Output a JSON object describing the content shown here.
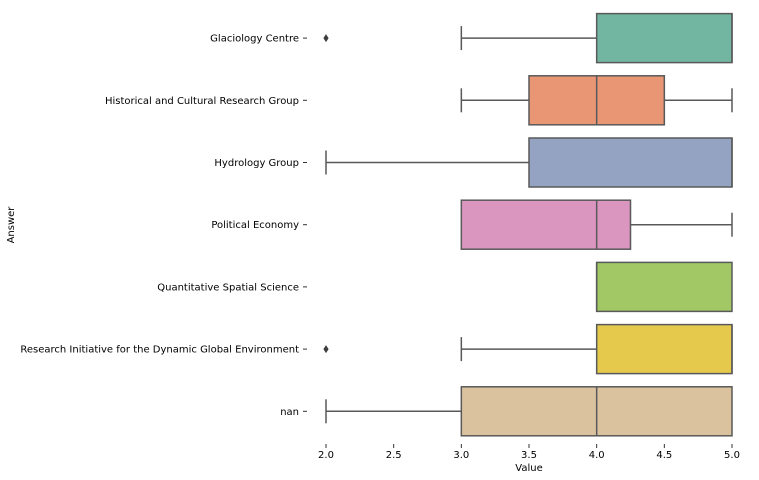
{
  "chart_data": {
    "type": "boxplot",
    "orientation": "horizontal",
    "title": "",
    "xlabel": "Value",
    "ylabel": "Answer",
    "xlim": [
      2.0,
      5.0
    ],
    "xticks": [
      2.0,
      2.5,
      3.0,
      3.5,
      4.0,
      4.5,
      5.0
    ],
    "xtick_labels": [
      "2.0",
      "2.5",
      "3.0",
      "3.5",
      "4.0",
      "4.5",
      "5.0"
    ],
    "grid": false,
    "categories": [
      "Glaciology Centre",
      "Historical and Cultural Research Group",
      "Hydrology Group",
      "Political Economy",
      "Quantitative Spatial Science",
      "Research Initiative for the Dynamic Global Environment",
      "nan"
    ],
    "boxes": [
      {
        "category": "Glaciology Centre",
        "whisker_low": 3.0,
        "q1": 4.0,
        "median": 5.0,
        "q3": 5.0,
        "whisker_high": 5.0,
        "outliers": [
          2.0
        ],
        "color": "#72b6a1"
      },
      {
        "category": "Historical and Cultural Research Group",
        "whisker_low": 3.0,
        "q1": 3.5,
        "median": 4.0,
        "q3": 4.5,
        "whisker_high": 5.0,
        "outliers": [],
        "color": "#e99675"
      },
      {
        "category": "Hydrology Group",
        "whisker_low": 2.0,
        "q1": 3.5,
        "median": 5.0,
        "q3": 5.0,
        "whisker_high": 5.0,
        "outliers": [],
        "color": "#95a3c3"
      },
      {
        "category": "Political Economy",
        "whisker_low": 3.0,
        "q1": 3.0,
        "median": 4.0,
        "q3": 4.25,
        "whisker_high": 5.0,
        "outliers": [],
        "color": "#db96c0"
      },
      {
        "category": "Quantitative Spatial Science",
        "whisker_low": 4.0,
        "q1": 4.0,
        "median": 4.0,
        "q3": 5.0,
        "whisker_high": 5.0,
        "outliers": [],
        "color": "#a2c865"
      },
      {
        "category": "Research Initiative for the Dynamic Global Environment",
        "whisker_low": 3.0,
        "q1": 4.0,
        "median": 5.0,
        "q3": 5.0,
        "whisker_high": 5.0,
        "outliers": [
          2.0
        ],
        "color": "#e5c94c"
      },
      {
        "category": "nan",
        "whisker_low": 2.0,
        "q1": 3.0,
        "median": 4.0,
        "q3": 5.0,
        "whisker_high": 5.0,
        "outliers": [],
        "color": "#dbc29e"
      }
    ]
  }
}
